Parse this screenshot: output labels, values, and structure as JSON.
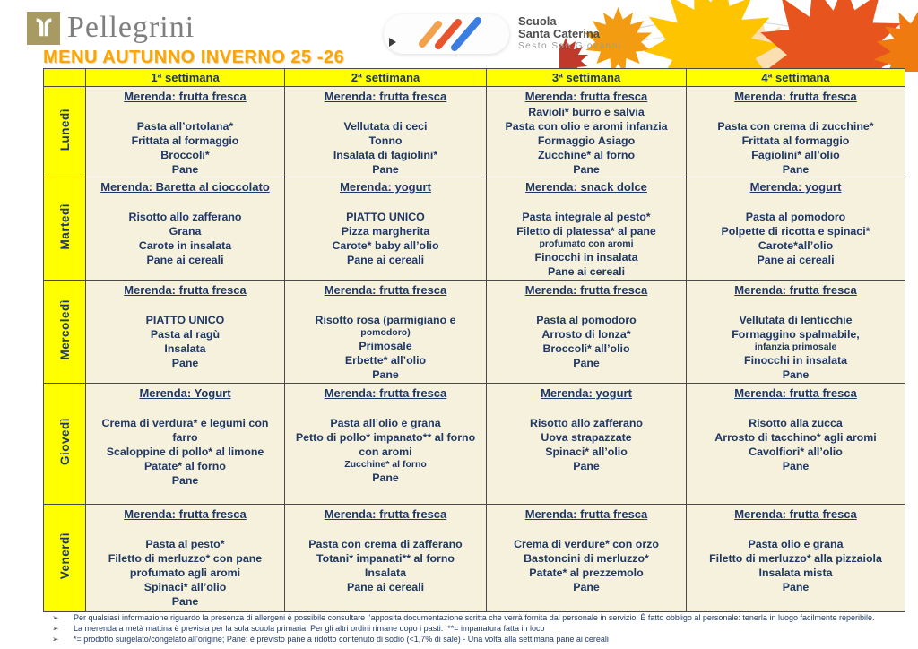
{
  "brand": {
    "name": "Pellegrini"
  },
  "school_logo": {
    "name_line1": "Scuola",
    "name_line2": "Santa Caterina",
    "subtitle": "Sesto San Giovanni"
  },
  "page_title": "MENU AUTUNNO INVERNO 25 -26",
  "menu_table": {
    "week_headers": [
      "1ª settimana",
      "2ª settimana",
      "3ª settimana",
      "4ª settimana"
    ],
    "rows": [
      {
        "day": "Lunedì",
        "cells": [
          {
            "merenda": "Merenda: frutta fresca",
            "items": [
              "",
              "Pasta all’ortolana*",
              "Frittata al formaggio",
              "Broccoli*",
              "Pane"
            ]
          },
          {
            "merenda": "Merenda: frutta fresca",
            "items": [
              "",
              "Vellutata di ceci",
              "Tonno",
              "Insalata di fagiolini*",
              "Pane"
            ]
          },
          {
            "merenda": "Merenda: frutta fresca",
            "items": [
              "Ravioli* burro e salvia",
              "Pasta con olio e aromi infanzia",
              "Formaggio Asiago",
              "Zucchine* al forno",
              "Pane"
            ]
          },
          {
            "merenda": "Merenda: frutta fresca",
            "items": [
              "",
              "Pasta con crema di zucchine*",
              "Frittata al formaggio",
              "Fagiolini* all’olio",
              "Pane"
            ]
          }
        ]
      },
      {
        "day": "Martedì",
        "cells": [
          {
            "merenda": "Merenda: Baretta al cioccolato",
            "items": [
              "",
              "Risotto allo zafferano",
              "Grana",
              "Carote in insalata",
              "Pane ai cereali"
            ]
          },
          {
            "merenda": "Merenda: yogurt",
            "items": [
              "",
              "PIATTO UNICO",
              "Pizza margherita",
              "Carote* baby all’olio",
              "Pane ai cereali"
            ]
          },
          {
            "merenda": "Merenda: snack dolce",
            "items": [
              "",
              "Pasta integrale al pesto*",
              "Filetto di platessa* al pane",
              {
                "text": "profumato con aromi",
                "small": true
              },
              "Finocchi in insalata",
              "Pane ai cereali"
            ]
          },
          {
            "merenda": "Merenda: yogurt",
            "items": [
              "",
              "Pasta al pomodoro",
              "Polpette di ricotta e spinaci*",
              "Carote*all’olio",
              "Pane ai cereali"
            ]
          }
        ]
      },
      {
        "day": "Mercoledì",
        "cells": [
          {
            "merenda": "Merenda: frutta fresca",
            "items": [
              "",
              "PIATTO UNICO",
              "Pasta al ragù",
              "Insalata",
              "Pane"
            ]
          },
          {
            "merenda": "Merenda: frutta fresca",
            "items": [
              "",
              "Risotto rosa (parmigiano e",
              {
                "text": "pomodoro)",
                "small": true
              },
              "Primosale",
              "Erbette* all’olio",
              "Pane"
            ]
          },
          {
            "merenda": "Merenda: frutta fresca",
            "items": [
              "",
              "Pasta al pomodoro",
              "Arrosto di lonza*",
              "Broccoli* all’olio",
              "Pane"
            ]
          },
          {
            "merenda": "Merenda: frutta fresca",
            "items": [
              "",
              "Vellutata di lenticchie",
              "Formaggino spalmabile,",
              {
                "text": "infanzia primosale",
                "small": true
              },
              "Finocchi in insalata",
              "Pane"
            ]
          }
        ]
      },
      {
        "day": "Giovedì",
        "cells": [
          {
            "merenda": "Merenda: Yogurt",
            "items": [
              "",
              "Crema di verdura* e legumi con farro",
              "Scaloppine di pollo* al limone",
              "Patate* al forno",
              "Pane"
            ]
          },
          {
            "merenda": "Merenda: frutta fresca",
            "items": [
              "",
              "Pasta all’olio e grana",
              "Petto di pollo* impanato** al forno con aromi",
              {
                "text": "Zucchine* al forno",
                "small": true
              },
              "Pane"
            ]
          },
          {
            "merenda": "Merenda: yogurt",
            "items": [
              "",
              "Risotto allo zafferano",
              "Uova strapazzate",
              "Spinaci* all’olio",
              "Pane"
            ]
          },
          {
            "merenda": "Merenda: frutta fresca",
            "items": [
              "",
              "Risotto alla zucca",
              "Arrosto di tacchino* agli aromi",
              "Cavolfiori* all’olio",
              "Pane"
            ]
          }
        ]
      },
      {
        "day": "Venerdì",
        "cells": [
          {
            "merenda": "Merenda: frutta fresca",
            "items": [
              "",
              "Pasta al pesto*",
              "Filetto di merluzzo* con pane profumato agli aromi",
              "Spinaci* all’olio",
              "Pane"
            ]
          },
          {
            "merenda": "Merenda: frutta fresca",
            "items": [
              "",
              "Pasta con crema di zafferano",
              "Totani* impanati** al forno",
              "Insalata",
              "Pane ai cereali"
            ]
          },
          {
            "merenda": "Merenda: frutta fresca",
            "items": [
              "",
              "Crema di verdure* con orzo",
              "Bastoncini di merluzzo*",
              "Patate* al prezzemolo",
              "Pane"
            ]
          },
          {
            "merenda": "Merenda: frutta fresca",
            "items": [
              "",
              "Pasta olio e grana",
              "Filetto di merluzzo* alla pizzaiola",
              "Insalata mista",
              "Pane"
            ]
          }
        ]
      }
    ]
  },
  "footnotes": {
    "bullet": "➢",
    "items": [
      "Per qualsiasi informazione riguardo la presenza di allergeni è possibile consultare l’apposita documentazione scritta che verrà fornita dal personale in servizio. È fatto obbligo al personale: tenerla in luogo facilmente reperibile.",
      "La merenda a metà mattina è prevista per la sola scuola primaria. Per gli altri ordini rimane dopo i pasti.  **= impanatura fatta in loco",
      "*= prodotto surgelato/congelato all’origine; Pane: è previsto pane a ridotto contenuto di sodio (<1,7% di sale) - Una volta alla settimana pane ai cereali"
    ]
  },
  "colors": {
    "header_yellow": "#ffff00",
    "cell_cream": "#f6f1dc",
    "text_navy": "#1f3864",
    "title_orange": "#f9a506",
    "brand_gold": "#a79a62"
  }
}
